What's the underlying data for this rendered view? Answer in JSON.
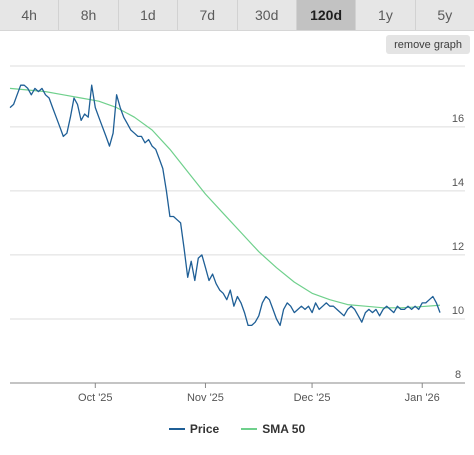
{
  "range_tabs": [
    {
      "label": "4h"
    },
    {
      "label": "8h"
    },
    {
      "label": "1d"
    },
    {
      "label": "7d"
    },
    {
      "label": "30d"
    },
    {
      "label": "120d",
      "active": true
    },
    {
      "label": "1y"
    },
    {
      "label": "5y"
    }
  ],
  "remove_graph_label": "remove graph",
  "colors": {
    "price": "#1f5f96",
    "sma": "#6fd08c",
    "grid": "#dddddd",
    "axis": "#888888"
  },
  "legend": [
    {
      "label": "Price",
      "color": "#1f5f96"
    },
    {
      "label": "SMA 50",
      "color": "#6fd08c"
    }
  ],
  "chart_data": {
    "type": "line",
    "title": "",
    "xlabel": "",
    "ylabel": "",
    "ylim": [
      8,
      18
    ],
    "y_ticks": [
      8,
      10,
      12,
      14,
      16
    ],
    "y_tick_labels": [
      "8",
      "10",
      "12",
      "14",
      "16"
    ],
    "x_ticks": [
      {
        "label": "Oct '25",
        "day": 24
      },
      {
        "label": "Nov '25",
        "day": 55
      },
      {
        "label": "Dec '25",
        "day": 85
      },
      {
        "label": "Jan '26",
        "day": 116
      }
    ],
    "x_range": [
      0,
      121
    ],
    "series": [
      {
        "name": "Price",
        "x": [
          0,
          1,
          2,
          3,
          4,
          5,
          6,
          7,
          8,
          9,
          10,
          11,
          12,
          13,
          14,
          15,
          16,
          17,
          18,
          19,
          20,
          21,
          22,
          23,
          24,
          25,
          26,
          27,
          28,
          29,
          30,
          31,
          32,
          33,
          34,
          35,
          36,
          37,
          38,
          39,
          40,
          41,
          42,
          43,
          44,
          45,
          46,
          47,
          48,
          49,
          50,
          51,
          52,
          53,
          54,
          55,
          56,
          57,
          58,
          59,
          60,
          61,
          62,
          63,
          64,
          65,
          66,
          67,
          68,
          69,
          70,
          71,
          72,
          73,
          74,
          75,
          76,
          77,
          78,
          79,
          80,
          81,
          82,
          83,
          84,
          85,
          86,
          87,
          88,
          89,
          90,
          91,
          92,
          93,
          94,
          95,
          96,
          97,
          98,
          99,
          100,
          101,
          102,
          103,
          104,
          105,
          106,
          107,
          108,
          109,
          110,
          111,
          112,
          113,
          114,
          115,
          116,
          117,
          118,
          119,
          120,
          121
        ],
        "values": [
          16.6,
          16.7,
          17.0,
          17.3,
          17.3,
          17.2,
          17.0,
          17.2,
          17.1,
          17.2,
          17.0,
          16.9,
          16.6,
          16.3,
          16.0,
          15.7,
          15.8,
          16.3,
          16.9,
          16.7,
          16.2,
          16.4,
          16.3,
          17.3,
          16.6,
          16.3,
          16.0,
          15.7,
          15.4,
          15.8,
          17.0,
          16.6,
          16.3,
          16.1,
          15.9,
          15.8,
          15.7,
          15.7,
          15.5,
          15.6,
          15.4,
          15.3,
          15.0,
          14.7,
          14.0,
          13.2,
          13.2,
          13.1,
          13.0,
          12.2,
          11.3,
          11.8,
          11.2,
          11.9,
          12.0,
          11.6,
          11.2,
          11.4,
          11.1,
          10.9,
          10.8,
          10.6,
          10.9,
          10.4,
          10.7,
          10.5,
          10.2,
          9.8,
          9.8,
          9.9,
          10.1,
          10.5,
          10.7,
          10.6,
          10.3,
          10.0,
          9.8,
          10.3,
          10.5,
          10.4,
          10.2,
          10.3,
          10.4,
          10.3,
          10.4,
          10.2,
          10.5,
          10.3,
          10.4,
          10.5,
          10.4,
          10.4,
          10.3,
          10.2,
          10.1,
          10.3,
          10.4,
          10.3,
          10.1,
          9.9,
          10.2,
          10.3,
          10.2,
          10.3,
          10.1,
          10.3,
          10.4,
          10.3,
          10.2,
          10.4,
          10.3,
          10.3,
          10.4,
          10.3,
          10.4,
          10.3,
          10.5,
          10.5,
          10.6,
          10.7,
          10.5,
          10.2
        ]
      },
      {
        "name": "SMA 50",
        "x": [
          0,
          5,
          10,
          15,
          20,
          25,
          30,
          35,
          40,
          45,
          50,
          55,
          60,
          65,
          70,
          75,
          80,
          85,
          90,
          95,
          100,
          105,
          110,
          115,
          120,
          121
        ],
        "values": [
          17.2,
          17.15,
          17.1,
          17.0,
          16.9,
          16.8,
          16.6,
          16.3,
          15.9,
          15.3,
          14.6,
          13.9,
          13.3,
          12.7,
          12.1,
          11.6,
          11.15,
          10.8,
          10.6,
          10.45,
          10.4,
          10.35,
          10.35,
          10.38,
          10.42,
          10.43
        ]
      }
    ],
    "grid": true,
    "legend_position": "bottom"
  }
}
